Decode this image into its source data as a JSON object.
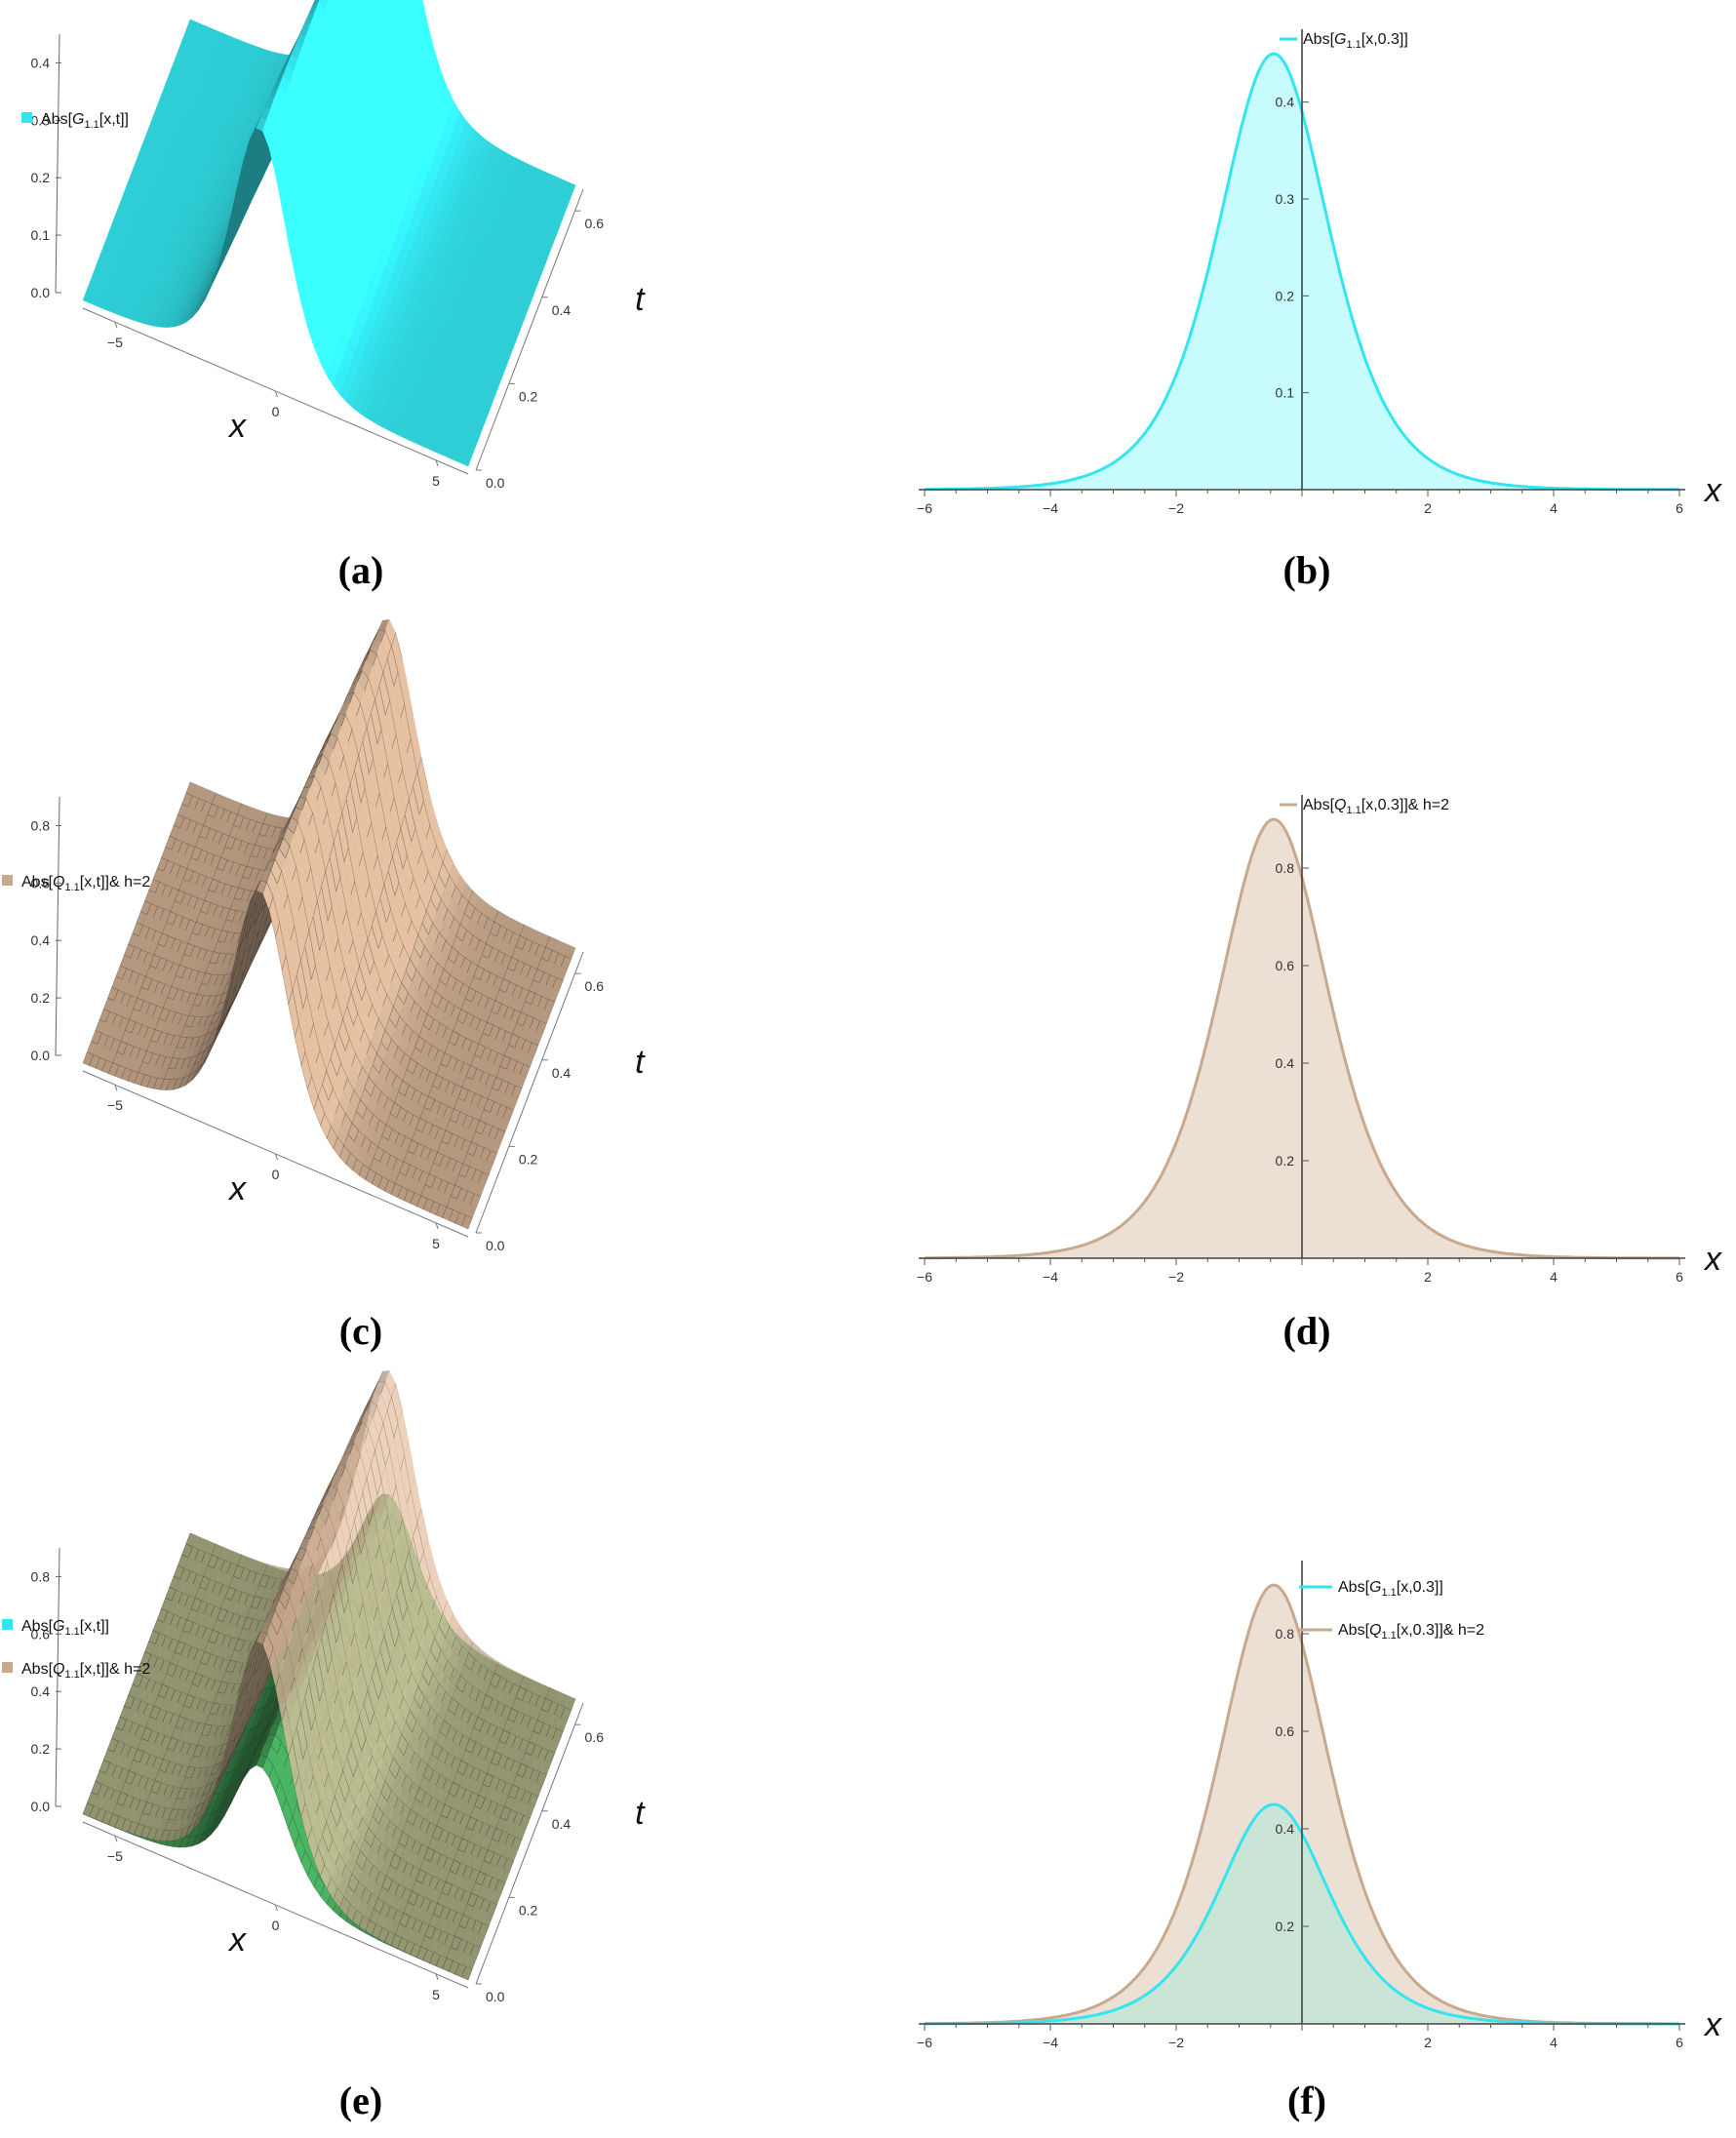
{
  "colors": {
    "cyan": "#33e5ee",
    "cyan_fill": "#c8fbfd",
    "tan": "#c8a98e",
    "tan_fill": "#ecdfd4",
    "green": "#3f9e56",
    "overlap_fill": "#c8e5d6"
  },
  "chart_data": [
    {
      "id": "a",
      "type": "surface",
      "caption": "(a)",
      "legend": [
        "Abs[G1.1[x,t]]"
      ],
      "xlabel": "x",
      "ylabel": "t",
      "xticks": [
        "-5",
        "0",
        "5"
      ],
      "tticks": [
        "0.0",
        "0.2",
        "0.4",
        "0.6"
      ],
      "zticks": [
        "0.0",
        "0.1",
        "0.2",
        "0.3",
        "0.4"
      ],
      "xlim": [
        -6,
        6
      ],
      "tlim": [
        0,
        0.65
      ],
      "zlim": [
        0,
        0.45
      ],
      "surfaces": [
        {
          "name": "Abs[G1.1[x,t]]",
          "peak": 0.45,
          "peak_x_at_t0": -0.5,
          "color": "cyan"
        }
      ],
      "grid": false
    },
    {
      "id": "b",
      "type": "area",
      "caption": "(b)",
      "legend": [
        "Abs[G1.1[x,0.3]]"
      ],
      "legend_position": "top-right",
      "xlabel": "x",
      "xticks": [
        "-6",
        "-4",
        "-2",
        "2",
        "4",
        "6"
      ],
      "yticks": [
        "0.1",
        "0.2",
        "0.3",
        "0.4"
      ],
      "xlim": [
        -6,
        6
      ],
      "ylim": [
        0,
        0.45
      ],
      "series": [
        {
          "name": "Abs[G1.1[x,0.3]]",
          "peak": 0.45,
          "peak_x": -0.45,
          "color": "cyan",
          "x": [
            -6,
            -5,
            -4,
            -3,
            -2,
            -1.5,
            -1,
            -0.45,
            0,
            0.5,
            1,
            1.5,
            2,
            3,
            4,
            5,
            6
          ],
          "y": [
            0.005,
            0.011,
            0.03,
            0.075,
            0.18,
            0.26,
            0.36,
            0.45,
            0.41,
            0.33,
            0.24,
            0.165,
            0.105,
            0.04,
            0.014,
            0.005,
            0.002
          ]
        }
      ]
    },
    {
      "id": "c",
      "type": "surface",
      "caption": "(c)",
      "legend": [
        "Abs[Q1.1[x,t]]& h=2"
      ],
      "xlabel": "x",
      "ylabel": "t",
      "xticks": [
        "-5",
        "0",
        "5"
      ],
      "tticks": [
        "0.0",
        "0.2",
        "0.4",
        "0.6"
      ],
      "zticks": [
        "0.0",
        "0.2",
        "0.4",
        "0.6",
        "0.8"
      ],
      "xlim": [
        -6,
        6
      ],
      "tlim": [
        0,
        0.65
      ],
      "zlim": [
        0,
        0.9
      ],
      "surfaces": [
        {
          "name": "Abs[Q1.1[x,t]]& h=2",
          "peak": 0.9,
          "peak_x_at_t0": -0.5,
          "color": "tan"
        }
      ],
      "grid": true
    },
    {
      "id": "d",
      "type": "area",
      "caption": "(d)",
      "legend": [
        "Abs[Q1.1[x,0.3]]& h=2"
      ],
      "legend_position": "top-right",
      "xlabel": "x",
      "xticks": [
        "-6",
        "-4",
        "-2",
        "2",
        "4",
        "6"
      ],
      "yticks": [
        "0.2",
        "0.4",
        "0.6",
        "0.8"
      ],
      "xlim": [
        -6,
        6
      ],
      "ylim": [
        0,
        0.9
      ],
      "series": [
        {
          "name": "Abs[Q1.1[x,0.3]]& h=2",
          "peak": 0.9,
          "peak_x": -0.45,
          "color": "tan",
          "x": [
            -6,
            -5,
            -4,
            -3,
            -2,
            -1.5,
            -1,
            -0.45,
            0,
            0.5,
            1,
            1.5,
            2,
            3,
            4,
            5,
            6
          ],
          "y": [
            0.01,
            0.022,
            0.06,
            0.15,
            0.36,
            0.52,
            0.72,
            0.9,
            0.82,
            0.66,
            0.48,
            0.33,
            0.21,
            0.08,
            0.028,
            0.01,
            0.004
          ]
        }
      ]
    },
    {
      "id": "e",
      "type": "surface",
      "caption": "(e)",
      "legend": [
        "Abs[G1.1[x,t]]",
        "Abs[Q1.1[x,t]]& h=2"
      ],
      "xlabel": "x",
      "ylabel": "t",
      "xticks": [
        "-5",
        "0",
        "5"
      ],
      "tticks": [
        "0.0",
        "0.2",
        "0.4",
        "0.6"
      ],
      "zticks": [
        "0.0",
        "0.2",
        "0.4",
        "0.6",
        "0.8"
      ],
      "xlim": [
        -6,
        6
      ],
      "tlim": [
        0,
        0.65
      ],
      "zlim": [
        0,
        0.9
      ],
      "surfaces": [
        {
          "name": "Abs[G1.1[x,t]]",
          "peak": 0.45,
          "peak_x_at_t0": -0.5,
          "color": "green"
        },
        {
          "name": "Abs[Q1.1[x,t]]& h=2",
          "peak": 0.9,
          "peak_x_at_t0": -0.5,
          "color": "tan"
        }
      ],
      "grid": true
    },
    {
      "id": "f",
      "type": "area",
      "caption": "(f)",
      "legend": [
        "Abs[G1.1[x,0.3]]",
        "Abs[Q1.1[x,0.3]]& h=2"
      ],
      "legend_position": "top-right",
      "xlabel": "x",
      "xticks": [
        "-6",
        "-4",
        "-2",
        "2",
        "4",
        "6"
      ],
      "yticks": [
        "0.2",
        "0.4",
        "0.6",
        "0.8"
      ],
      "xlim": [
        -6,
        6
      ],
      "ylim": [
        0,
        0.9
      ],
      "series": [
        {
          "name": "Abs[Q1.1[x,0.3]]& h=2",
          "peak": 0.9,
          "peak_x": -0.45,
          "color": "tan",
          "x": [
            -6,
            -5,
            -4,
            -3,
            -2,
            -1.5,
            -1,
            -0.45,
            0,
            0.5,
            1,
            1.5,
            2,
            3,
            4,
            5,
            6
          ],
          "y": [
            0.01,
            0.022,
            0.06,
            0.15,
            0.36,
            0.52,
            0.72,
            0.9,
            0.82,
            0.66,
            0.48,
            0.33,
            0.21,
            0.08,
            0.028,
            0.01,
            0.004
          ]
        },
        {
          "name": "Abs[G1.1[x,0.3]]",
          "peak": 0.45,
          "peak_x": -0.45,
          "color": "cyan",
          "x": [
            -6,
            -5,
            -4,
            -3,
            -2,
            -1.5,
            -1,
            -0.45,
            0,
            0.5,
            1,
            1.5,
            2,
            3,
            4,
            5,
            6
          ],
          "y": [
            0.005,
            0.011,
            0.03,
            0.075,
            0.18,
            0.26,
            0.36,
            0.45,
            0.41,
            0.33,
            0.24,
            0.165,
            0.105,
            0.04,
            0.014,
            0.005,
            0.002
          ]
        }
      ]
    }
  ]
}
